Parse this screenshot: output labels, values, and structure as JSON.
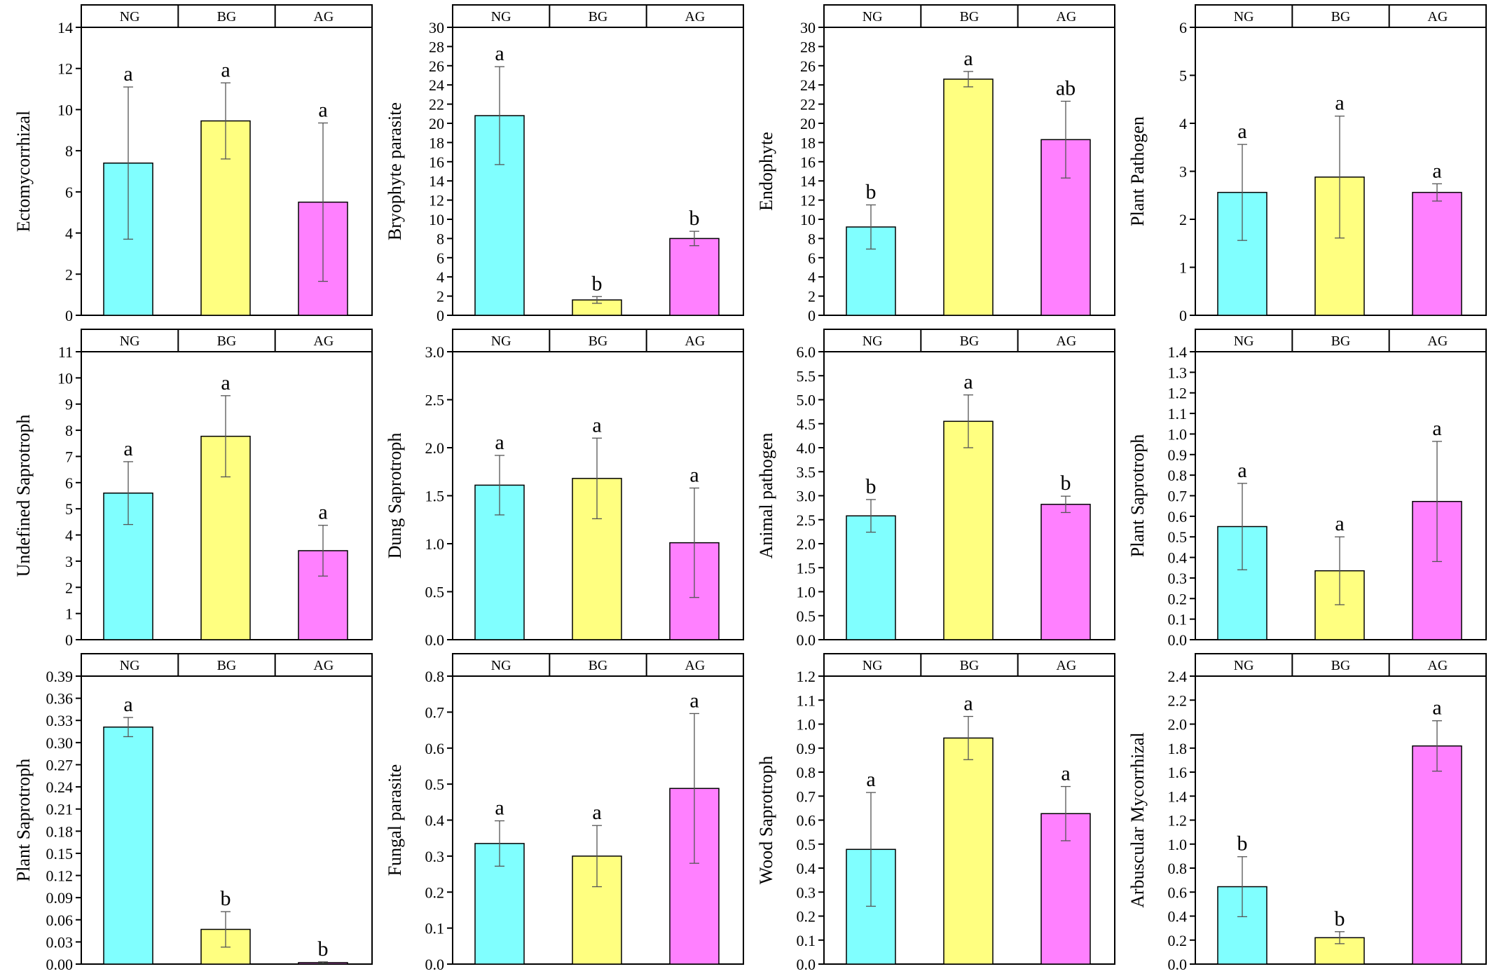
{
  "colors": {
    "NG": "#80FFFF",
    "BG": "#FFFF80",
    "AG": "#FF80FF",
    "axis": "#000000",
    "errorbar": "#555555",
    "background": "#FFFFFF"
  },
  "chart_data": [
    {
      "type": "bar",
      "ylabel": "Ectomycorrhizal",
      "categories": [
        "NG",
        "BG",
        "AG"
      ],
      "values": [
        7.4,
        9.45,
        5.5
      ],
      "errors": [
        3.7,
        1.85,
        3.85
      ],
      "letters": [
        "a",
        "a",
        "a"
      ],
      "ylim": [
        0,
        14
      ],
      "yticks": [
        0,
        2,
        4,
        6,
        8,
        10,
        12,
        14
      ],
      "tick_decimals": 0
    },
    {
      "type": "bar",
      "ylabel": "Bryophyte parasite",
      "categories": [
        "NG",
        "BG",
        "AG"
      ],
      "values": [
        20.8,
        1.6,
        8.0
      ],
      "errors": [
        5.1,
        0.35,
        0.75
      ],
      "letters": [
        "a",
        "b",
        "b"
      ],
      "ylim": [
        0,
        30
      ],
      "yticks": [
        0,
        2,
        4,
        6,
        8,
        10,
        12,
        14,
        16,
        18,
        20,
        22,
        24,
        26,
        28,
        30
      ],
      "tick_decimals": 0
    },
    {
      "type": "bar",
      "ylabel": "Endophyte",
      "categories": [
        "NG",
        "BG",
        "AG"
      ],
      "values": [
        9.2,
        24.6,
        18.3
      ],
      "errors": [
        2.3,
        0.8,
        4.0
      ],
      "letters": [
        "b",
        "a",
        "ab"
      ],
      "ylim": [
        0,
        30
      ],
      "yticks": [
        0,
        2,
        4,
        6,
        8,
        10,
        12,
        14,
        16,
        18,
        20,
        22,
        24,
        26,
        28,
        30
      ],
      "tick_decimals": 0
    },
    {
      "type": "bar",
      "ylabel": "Plant Pathogen",
      "categories": [
        "NG",
        "BG",
        "AG"
      ],
      "values": [
        2.56,
        2.88,
        2.56
      ],
      "errors": [
        1.0,
        1.27,
        0.18
      ],
      "letters": [
        "a",
        "a",
        "a"
      ],
      "ylim": [
        0,
        6
      ],
      "yticks": [
        0,
        1,
        2,
        3,
        4,
        5,
        6
      ],
      "tick_decimals": 0
    },
    {
      "type": "bar",
      "ylabel": "Undefined Saprotroph",
      "categories": [
        "NG",
        "BG",
        "AG"
      ],
      "values": [
        5.6,
        7.77,
        3.4
      ],
      "errors": [
        1.2,
        1.55,
        0.97
      ],
      "letters": [
        "a",
        "a",
        "a"
      ],
      "ylim": [
        0,
        11
      ],
      "yticks": [
        0,
        1,
        2,
        3,
        4,
        5,
        6,
        7,
        8,
        9,
        10,
        11
      ],
      "tick_decimals": 0
    },
    {
      "type": "bar",
      "ylabel": "Dung Saprotroph",
      "categories": [
        "NG",
        "BG",
        "AG"
      ],
      "values": [
        1.61,
        1.68,
        1.01
      ],
      "errors": [
        0.31,
        0.42,
        0.57
      ],
      "letters": [
        "a",
        "a",
        "a"
      ],
      "ylim": [
        0,
        3.0
      ],
      "yticks": [
        0,
        0.5,
        1.0,
        1.5,
        2.0,
        2.5,
        3.0
      ],
      "tick_decimals": 1
    },
    {
      "type": "bar",
      "ylabel": "Animal pathogen",
      "categories": [
        "NG",
        "BG",
        "AG"
      ],
      "values": [
        2.58,
        4.55,
        2.82
      ],
      "errors": [
        0.34,
        0.55,
        0.17
      ],
      "letters": [
        "b",
        "a",
        "b"
      ],
      "ylim": [
        0,
        6.0
      ],
      "yticks": [
        0,
        0.5,
        1.0,
        1.5,
        2.0,
        2.5,
        3.0,
        3.5,
        4.0,
        4.5,
        5.0,
        5.5,
        6.0
      ],
      "tick_decimals": 1
    },
    {
      "type": "bar",
      "ylabel": "Plant Saprotroph",
      "categories": [
        "NG",
        "BG",
        "AG"
      ],
      "values": [
        0.55,
        0.335,
        0.672
      ],
      "errors": [
        0.21,
        0.165,
        0.292
      ],
      "letters": [
        "a",
        "a",
        "a"
      ],
      "ylim": [
        0,
        1.4
      ],
      "yticks": [
        0,
        0.1,
        0.2,
        0.3,
        0.4,
        0.5,
        0.6,
        0.7,
        0.8,
        0.9,
        1.0,
        1.1,
        1.2,
        1.3,
        1.4
      ],
      "tick_decimals": 1
    },
    {
      "type": "bar",
      "ylabel": "Plant Saprotroph",
      "categories": [
        "NG",
        "BG",
        "AG"
      ],
      "values": [
        0.321,
        0.047,
        0.002
      ],
      "errors": [
        0.013,
        0.024,
        0.001
      ],
      "letters": [
        "a",
        "b",
        "b"
      ],
      "ylim": [
        0,
        0.39
      ],
      "yticks": [
        0,
        0.03,
        0.06,
        0.09,
        0.12,
        0.15,
        0.18,
        0.21,
        0.24,
        0.27,
        0.3,
        0.33,
        0.36,
        0.39
      ],
      "tick_decimals": 2
    },
    {
      "type": "bar",
      "ylabel": "Fungal parasite",
      "categories": [
        "NG",
        "BG",
        "AG"
      ],
      "values": [
        0.335,
        0.3,
        0.488
      ],
      "errors": [
        0.063,
        0.085,
        0.208
      ],
      "letters": [
        "a",
        "a",
        "a"
      ],
      "ylim": [
        0,
        0.8
      ],
      "yticks": [
        0,
        0.1,
        0.2,
        0.3,
        0.4,
        0.5,
        0.6,
        0.7,
        0.8
      ],
      "tick_decimals": 1
    },
    {
      "type": "bar",
      "ylabel": "Wood Saprotroph",
      "categories": [
        "NG",
        "BG",
        "AG"
      ],
      "values": [
        0.478,
        0.942,
        0.627
      ],
      "errors": [
        0.237,
        0.09,
        0.113
      ],
      "letters": [
        "a",
        "a",
        "a"
      ],
      "ylim": [
        0,
        1.2
      ],
      "yticks": [
        0,
        0.1,
        0.2,
        0.3,
        0.4,
        0.5,
        0.6,
        0.7,
        0.8,
        0.9,
        1.0,
        1.1,
        1.2
      ],
      "tick_decimals": 1
    },
    {
      "type": "bar",
      "ylabel": "Arbuscular Mycorrhizal",
      "categories": [
        "NG",
        "BG",
        "AG"
      ],
      "values": [
        0.645,
        0.22,
        1.818
      ],
      "errors": [
        0.25,
        0.05,
        0.21
      ],
      "letters": [
        "b",
        "b",
        "a"
      ],
      "ylim": [
        0,
        2.4
      ],
      "yticks": [
        0,
        0.2,
        0.4,
        0.6,
        0.8,
        1.0,
        1.2,
        1.4,
        1.6,
        1.8,
        2.0,
        2.2,
        2.4
      ],
      "tick_decimals": 1
    }
  ]
}
